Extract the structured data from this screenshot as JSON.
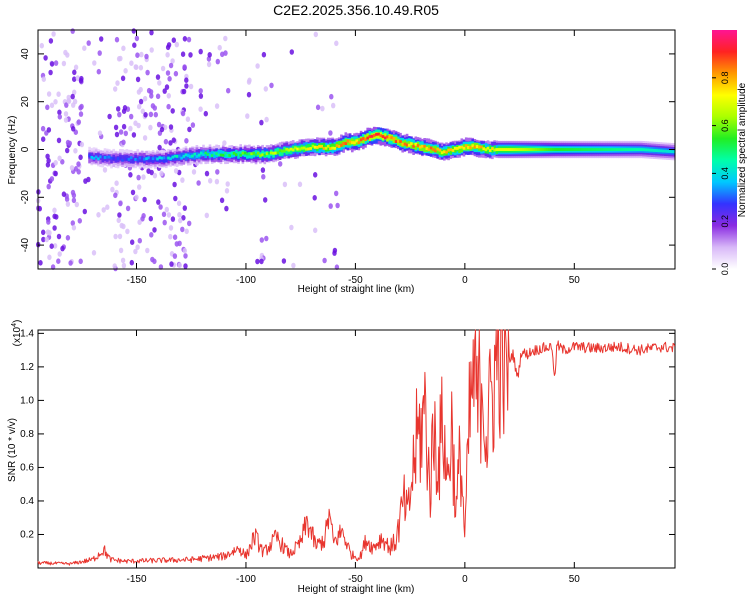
{
  "figure_title": "C2E2.2025.356.10.49.R05",
  "chart_data": [
    {
      "type": "heatmap",
      "title": "C2E2.2025.356.10.49.R05",
      "xlabel": "Height of straight line (km)",
      "ylabel": "Frequency (Hz)",
      "xlim": [
        -195,
        96
      ],
      "ylim": [
        -50,
        50
      ],
      "xticks": [
        -150,
        -100,
        -50,
        0,
        50
      ],
      "xtick_labels": [
        "-150",
        "-100",
        "-50",
        "0",
        "50"
      ],
      "yticks": [
        -40,
        -20,
        0,
        20,
        40
      ],
      "ytick_labels": [
        "-40",
        "-20",
        "0",
        "20",
        "40"
      ],
      "colorbar": {
        "label": "Normalized spectral amplitude",
        "range": [
          0,
          1
        ],
        "ticks": [
          0.0,
          0.2,
          0.4,
          0.6,
          0.8
        ],
        "tick_labels": [
          "0.0",
          "0.2",
          "0.4",
          "0.6",
          "0.8"
        ],
        "colormap": [
          "#ffffff",
          "#d8b8f8",
          "#8a2be2",
          "#3333ff",
          "#00c8ff",
          "#00ffaa",
          "#22ee22",
          "#aaff00",
          "#ffff00",
          "#ff9900",
          "#ff2222",
          "#ff1493"
        ]
      },
      "ridge": {
        "x": [
          -172,
          -160,
          -140,
          -130,
          -120,
          -110,
          -100,
          -90,
          -80,
          -70,
          -60,
          -55,
          -50,
          -45,
          -40,
          -35,
          -30,
          -25,
          -20,
          -15,
          -10,
          -5,
          0,
          5,
          10,
          20,
          40,
          60,
          80,
          96
        ],
        "freq": [
          -3,
          -4,
          -4,
          -3,
          -2,
          -2,
          -2,
          -2,
          0,
          1,
          1,
          3,
          3,
          5,
          6,
          5,
          3,
          2,
          1,
          0,
          -1,
          0,
          1,
          1,
          0,
          0,
          0,
          0,
          0,
          -1
        ],
        "amplitude": [
          0.3,
          0.3,
          0.35,
          0.4,
          0.45,
          0.5,
          0.55,
          0.6,
          0.65,
          0.7,
          0.75,
          0.8,
          0.8,
          0.85,
          0.9,
          0.85,
          0.8,
          0.8,
          0.8,
          0.8,
          0.75,
          0.75,
          0.8,
          0.8,
          0.7,
          0.7,
          0.55,
          0.5,
          0.45,
          0.4
        ]
      }
    },
    {
      "type": "line",
      "xlabel": "Height of straight line (km)",
      "ylabel": "SNR (10 * v/v)",
      "y_multiplier": "(x10",
      "y_multiplier_exponent": "4",
      "y_multiplier_close": ")",
      "xlim": [
        -195,
        96
      ],
      "ylim": [
        0,
        14200
      ],
      "xticks": [
        -150,
        -100,
        -50,
        0,
        50
      ],
      "xtick_labels": [
        "-150",
        "-100",
        "-50",
        "0",
        "50"
      ],
      "yticks": [
        2000,
        4000,
        6000,
        8000,
        10000,
        12000,
        14000
      ],
      "ytick_labels": [
        "0.2",
        "0.4",
        "0.6",
        "0.8",
        "1.0",
        "1.2",
        "1.4"
      ],
      "color": "#e8352e",
      "series": [
        {
          "name": "SNR",
          "x": [
            -195,
            -180,
            -170,
            -165,
            -162,
            -155,
            -140,
            -125,
            -110,
            -103,
            -100,
            -96,
            -92,
            -86,
            -80,
            -75,
            -72,
            -68,
            -64,
            -62,
            -60,
            -56,
            -52,
            -48,
            -45,
            -42,
            -38,
            -34,
            -32,
            -30,
            -28,
            -26,
            -24,
            -22,
            -20,
            -18,
            -16,
            -14,
            -12,
            -10,
            -8,
            -6,
            -4,
            -2,
            0,
            2,
            4,
            6,
            8,
            10,
            12,
            14,
            16,
            17,
            18,
            20,
            22,
            24,
            26,
            28,
            30,
            32,
            35,
            40,
            41,
            42,
            45,
            50,
            60,
            70,
            80,
            90,
            96
          ],
          "y": [
            300,
            250,
            500,
            1100,
            500,
            400,
            450,
            500,
            700,
            1200,
            700,
            1900,
            900,
            1800,
            800,
            1500,
            2800,
            1300,
            1700,
            3200,
            1500,
            2200,
            800,
            600,
            1700,
            1200,
            1800,
            1200,
            1500,
            2500,
            4000,
            3000,
            5500,
            7500,
            8200,
            9500,
            4500,
            8500,
            6200,
            9000,
            5000,
            8500,
            3200,
            7000,
            1800,
            8500,
            11500,
            9500,
            12000,
            7500,
            10200,
            11800,
            13500,
            14200,
            11500,
            12300,
            12800,
            11300,
            13000,
            12700,
            12900,
            13000,
            13100,
            13200,
            11000,
            13300,
            13000,
            13200,
            13100,
            13200,
            13000,
            13200,
            13100
          ]
        }
      ]
    }
  ]
}
